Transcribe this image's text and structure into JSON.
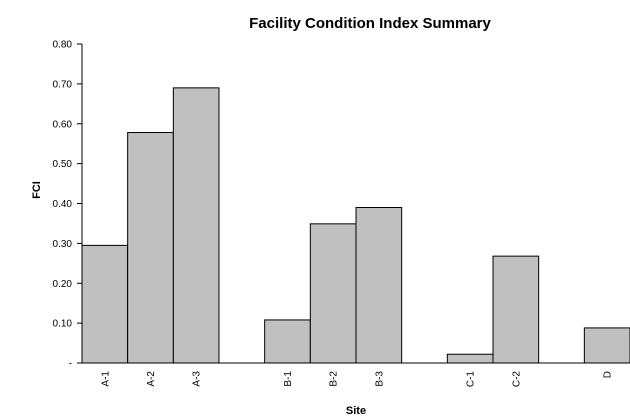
{
  "chart_data": {
    "type": "bar",
    "title": "Facility Condition Index Summary",
    "xlabel": "Site",
    "ylabel": "FCI",
    "categories": [
      "A-1",
      "A-2",
      "A-3",
      "",
      "B-1",
      "B-2",
      "B-3",
      "",
      "C-1",
      "C-2",
      "",
      "D"
    ],
    "values": [
      0.295,
      0.578,
      0.69,
      null,
      0.108,
      0.349,
      0.39,
      null,
      0.022,
      0.268,
      null,
      0.088
    ],
    "ylim": [
      0,
      0.8
    ],
    "yticks": [
      "-",
      "0.10",
      "0.20",
      "0.30",
      "0.40",
      "0.50",
      "0.60",
      "0.70",
      "0.80"
    ],
    "grid": false,
    "legend": "none",
    "bar_color": "#c0c0c0"
  }
}
